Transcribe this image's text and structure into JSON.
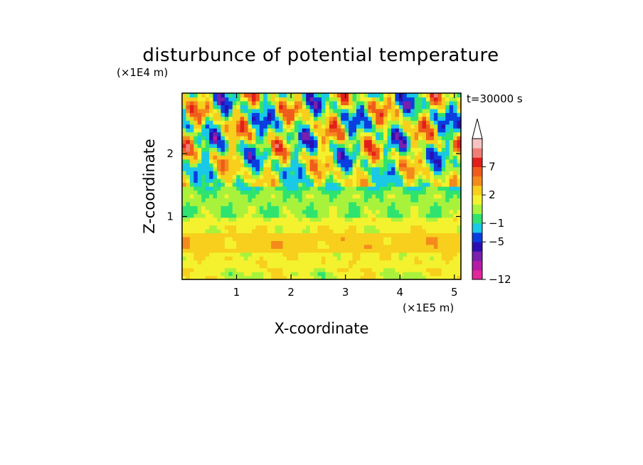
{
  "chart_data": {
    "type": "heatmap",
    "title": "disturbunce of potential temperature",
    "time_label": "t=30000 s",
    "xlabel": "X-coordinate",
    "ylabel": "Z-coordinate",
    "x_scale_label": "(×1E5 m)",
    "y_scale_label": "(×1E4 m)",
    "xlim": [
      0,
      5.12
    ],
    "ylim": [
      0,
      2.96
    ],
    "x_ticks": [
      "1",
      "2",
      "3",
      "4",
      "5"
    ],
    "x_tick_values": [
      1,
      2,
      3,
      4,
      5
    ],
    "y_ticks": [
      "1",
      "2"
    ],
    "y_tick_values": [
      1,
      2
    ],
    "colorbar": {
      "levels": [
        -12,
        -10,
        -8,
        -6,
        -5,
        -3,
        -1,
        0,
        1,
        2,
        4,
        5,
        7,
        9,
        11
      ],
      "colors": [
        "#e2259a",
        "#b41ba6",
        "#7a1fae",
        "#2b0fb3",
        "#0a3ee0",
        "#19c9e6",
        "#2fe36f",
        "#a9f23c",
        "#f4f22e",
        "#f7cf1c",
        "#f58a1c",
        "#ef5c1b",
        "#e31f1b",
        "#ef7f76",
        "#f7c3c2"
      ],
      "labels": [
        "-12",
        "-5",
        "-1",
        "2",
        "7"
      ],
      "label_values": [
        -12,
        -5,
        -1,
        2,
        7
      ],
      "extend": "max"
    },
    "field_summary": [
      {
        "z_range": [
          0.0,
          0.9
        ],
        "value_range": [
          1,
          3
        ],
        "description": "mostly positive (yellow/orange) layer"
      },
      {
        "z_range": [
          0.9,
          1.5
        ],
        "value_range": [
          -1,
          1
        ],
        "description": "near-zero (green/cyan) layer"
      },
      {
        "z_range": [
          1.5,
          2.96
        ],
        "value_range": [
          -6,
          8
        ],
        "description": "strong alternating warm/cold anomalies"
      }
    ]
  }
}
